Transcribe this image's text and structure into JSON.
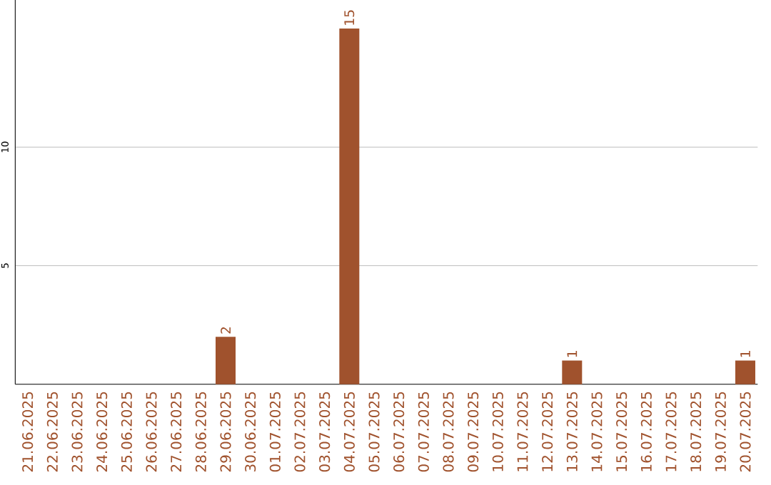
{
  "chart_data": {
    "type": "bar",
    "categories": [
      "21.06.2025",
      "22.06.2025",
      "23.06.2025",
      "24.06.2025",
      "25.06.2025",
      "26.06.2025",
      "27.06.2025",
      "28.06.2025",
      "29.06.2025",
      "30.06.2025",
      "01.07.2025",
      "02.07.2025",
      "03.07.2025",
      "04.07.2025",
      "05.07.2025",
      "06.07.2025",
      "07.07.2025",
      "08.07.2025",
      "09.07.2025",
      "10.07.2025",
      "11.07.2025",
      "12.07.2025",
      "13.07.2025",
      "14.07.2025",
      "15.07.2025",
      "16.07.2025",
      "17.07.2025",
      "18.07.2025",
      "19.07.2025",
      "20.07.2025"
    ],
    "values": [
      0,
      0,
      0,
      0,
      0,
      0,
      0,
      0,
      2,
      0,
      0,
      0,
      0,
      15,
      0,
      0,
      0,
      0,
      0,
      0,
      0,
      0,
      1,
      0,
      0,
      0,
      0,
      0,
      0,
      1
    ],
    "value_labels": [
      null,
      null,
      null,
      null,
      null,
      null,
      null,
      null,
      "2",
      null,
      null,
      null,
      null,
      "15",
      null,
      null,
      null,
      null,
      null,
      null,
      null,
      null,
      "1",
      null,
      null,
      null,
      null,
      null,
      null,
      "1"
    ],
    "color": "#a0522d",
    "ylim": [
      0,
      16.2
    ],
    "yticks": [
      5,
      10
    ],
    "grid": "y"
  }
}
